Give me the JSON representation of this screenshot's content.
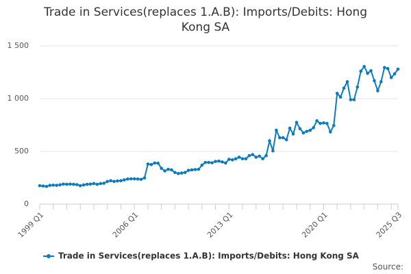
{
  "chart_data": {
    "type": "line",
    "title": [
      "Trade in Services(replaces 1.A.B): Imports/Debits: Hong",
      "Kong SA"
    ],
    "categories": [
      "1999 Q1",
      null,
      null,
      null,
      null,
      null,
      null,
      null,
      null,
      null,
      null,
      null,
      null,
      null,
      null,
      null,
      null,
      null,
      null,
      null,
      null,
      null,
      null,
      null,
      null,
      null,
      null,
      null,
      "2006 Q1",
      null,
      null,
      null,
      null,
      null,
      null,
      null,
      null,
      null,
      null,
      null,
      null,
      null,
      null,
      null,
      null,
      null,
      null,
      null,
      null,
      null,
      null,
      null,
      null,
      null,
      null,
      null,
      "2013 Q1",
      null,
      null,
      null,
      null,
      null,
      null,
      null,
      null,
      null,
      null,
      null,
      null,
      null,
      null,
      null,
      null,
      null,
      null,
      null,
      null,
      null,
      null,
      null,
      null,
      null,
      null,
      null,
      "2020 Q1",
      null,
      null,
      null,
      null,
      null,
      null,
      null,
      null,
      null,
      null,
      null,
      null,
      null,
      null,
      null,
      null,
      null,
      null,
      null,
      null,
      null,
      "2025 Q3"
    ],
    "series": [
      {
        "name": "Trade in Services(replaces 1.A.B): Imports/Debits: Hong Kong SA",
        "color": "#0b7bbf",
        "values": [
          175,
          172,
          168,
          178,
          180,
          178,
          183,
          190,
          188,
          190,
          188,
          185,
          175,
          182,
          188,
          190,
          195,
          188,
          195,
          198,
          215,
          222,
          215,
          220,
          222,
          230,
          238,
          240,
          240,
          238,
          235,
          248,
          380,
          375,
          390,
          388,
          340,
          315,
          330,
          325,
          300,
          290,
          295,
          300,
          320,
          325,
          328,
          330,
          370,
          395,
          395,
          392,
          405,
          408,
          400,
          390,
          425,
          420,
          430,
          445,
          430,
          430,
          460,
          470,
          445,
          455,
          430,
          460,
          600,
          505,
          700,
          630,
          630,
          610,
          720,
          665,
          775,
          715,
          675,
          690,
          700,
          725,
          790,
          765,
          770,
          765,
          685,
          745,
          1050,
          1015,
          1100,
          1160,
          990,
          990,
          1110,
          1260,
          1305,
          1240,
          1265,
          1170,
          1075,
          1160,
          1295,
          1285,
          1200,
          1235,
          1280
        ]
      }
    ],
    "ylim": [
      0,
      1500
    ],
    "yticks": [
      0,
      500,
      {
        "value": 1000,
        "label": "1 000"
      },
      {
        "value": 1500,
        "label": "1 500"
      }
    ],
    "grid": true,
    "legend": "bottom",
    "source": "Source:"
  }
}
